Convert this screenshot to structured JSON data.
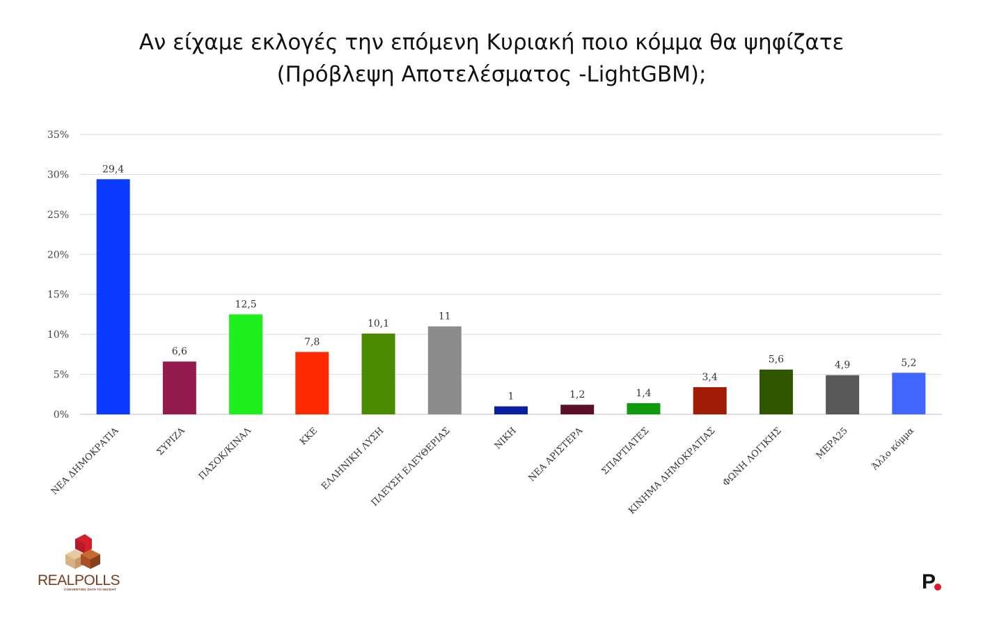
{
  "chart_data": {
    "type": "bar",
    "title_lines": [
      "Αν είχαμε εκλογές την επόμενη Κυριακή ποιο κόμμα θα ψηφίζατε",
      "(Πρόβλεψη Αποτελέσματος -LightGBM);"
    ],
    "categories": [
      "ΝΕΑ ΔΗΜΟΚΡΑΤΙΑ",
      "ΣΥΡΙΖΑ",
      "ΠΑΣΟΚ/ΚΙΝΑΛ",
      "ΚΚΕ",
      "ΕΛΛΗΝΙΚΗ ΛΥΣΗ",
      "ΠΛΕΥΣΗ ΕΛΕΥΘΕΡΙΑΣ",
      "ΝΙΚΗ",
      "ΝΕΑ ΑΡΙΣΤΕΡΑ",
      "ΣΠΑΡΤΙΑΤΕΣ",
      "ΚΙΝΗΜΑ ΔΗΜΟΚΡΑΤΙΑΣ",
      "ΦΩΝΗ ΛΟΓΙΚΗΣ",
      "ΜΕΡΑ25",
      "Άλλο κόμμα"
    ],
    "values": [
      29.4,
      6.6,
      12.5,
      7.8,
      10.1,
      11,
      1,
      1.2,
      1.4,
      3.4,
      5.6,
      4.9,
      5.2
    ],
    "value_labels": [
      "29,4",
      "6,6",
      "12,5",
      "7,8",
      "10,1",
      "11",
      "1",
      "1,2",
      "1,4",
      "3,4",
      "5,6",
      "4,9",
      "5,2"
    ],
    "colors": [
      "#0a3bff",
      "#931a4d",
      "#1ef01e",
      "#ff2a00",
      "#4a8a00",
      "#8c8c8c",
      "#0a1fa0",
      "#5c0f2a",
      "#109a10",
      "#a01a05",
      "#2f5500",
      "#595959",
      "#3f66ff"
    ],
    "ylim": [
      0,
      35
    ],
    "yticks": [
      0,
      5,
      10,
      15,
      20,
      25,
      30,
      35
    ],
    "ytick_labels": [
      "0%",
      "5%",
      "10%",
      "15%",
      "20%",
      "25%",
      "30%",
      "35%"
    ],
    "xlabel": "",
    "ylabel": "",
    "grid": true,
    "legend": "none"
  },
  "branding": {
    "realpolls_name": "REALPOLLS",
    "realpolls_tagline": "CONVERTING DATA TO INSIGHT",
    "publisher_mark": "P"
  }
}
